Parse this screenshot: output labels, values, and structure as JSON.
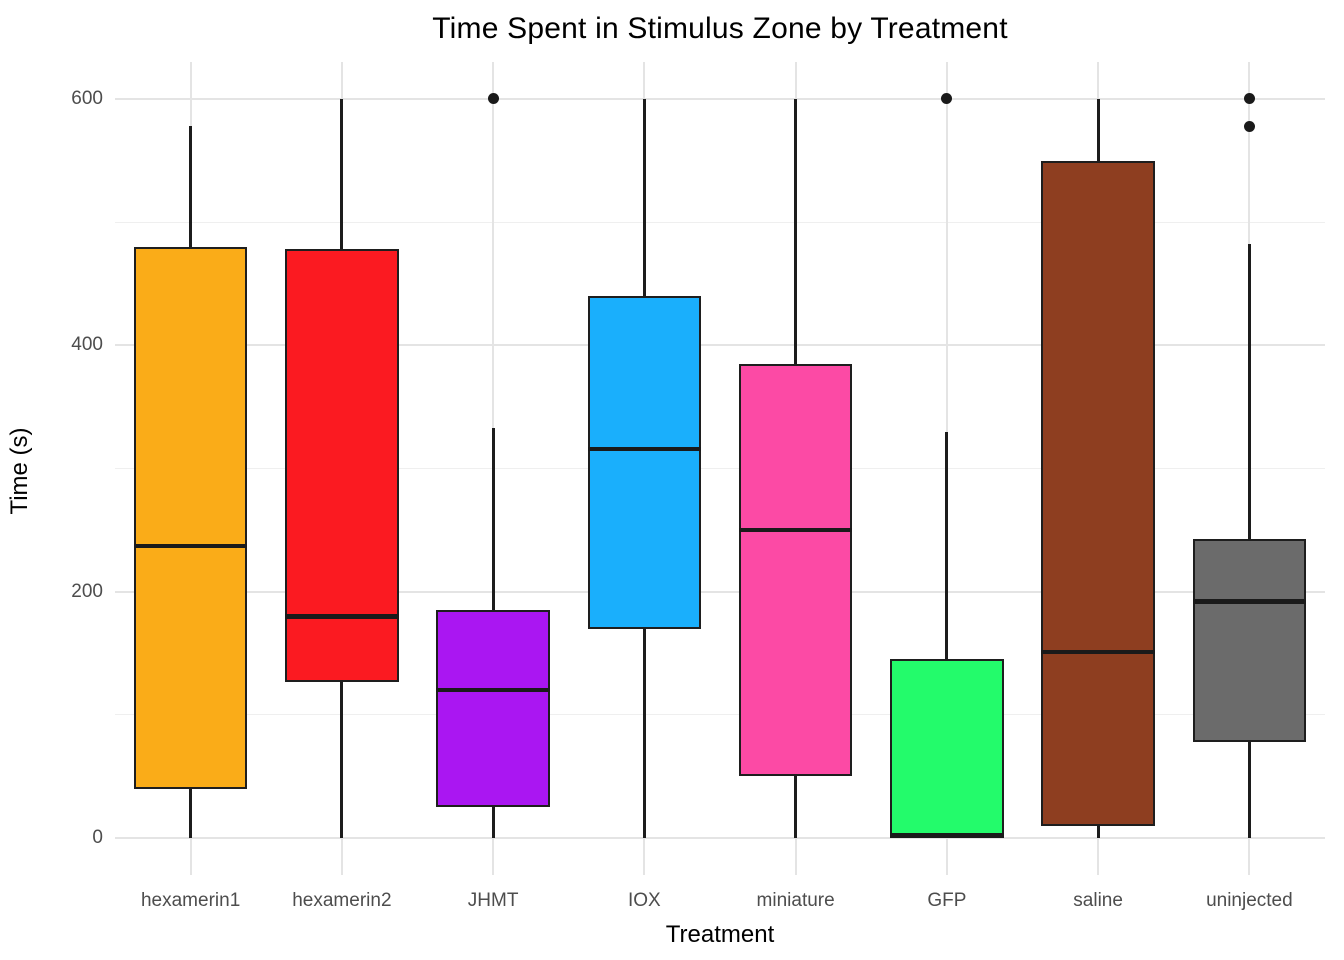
{
  "title": "Time Spent in Stimulus Zone by Treatment",
  "chart_data": {
    "type": "boxplot",
    "title": "Time Spent in Stimulus Zone by Treatment",
    "xlabel": "Treatment",
    "ylabel": "Time (s)",
    "y_ticks": [
      0,
      200,
      400,
      600
    ],
    "y_minor_ticks": [
      100,
      300,
      500
    ],
    "y_domain": [
      -30,
      630
    ],
    "grid": true,
    "legend": "none",
    "categories": [
      "hexamerin1",
      "hexamerin2",
      "JHMT",
      "IOX",
      "miniature",
      "GFP",
      "saline",
      "uninjected"
    ],
    "series": [
      {
        "name": "hexamerin1",
        "color": "#FAAC18",
        "whisker_low": 0,
        "q1": 40,
        "median": 237,
        "q3": 480,
        "whisker_high": 578,
        "outliers": []
      },
      {
        "name": "hexamerin2",
        "color": "#FB1A21",
        "whisker_low": 0,
        "q1": 127,
        "median": 180,
        "q3": 478,
        "whisker_high": 600,
        "outliers": []
      },
      {
        "name": "JHMT",
        "color": "#AA16F2",
        "whisker_low": 0,
        "q1": 25,
        "median": 120,
        "q3": 185,
        "whisker_high": 333,
        "outliers": [
          600
        ]
      },
      {
        "name": "IOX",
        "color": "#1AAFFC",
        "whisker_low": 0,
        "q1": 170,
        "median": 316,
        "q3": 440,
        "whisker_high": 600,
        "outliers": []
      },
      {
        "name": "miniature",
        "color": "#FC4AA5",
        "whisker_low": 0,
        "q1": 50,
        "median": 250,
        "q3": 385,
        "whisker_high": 600,
        "outliers": []
      },
      {
        "name": "GFP",
        "color": "#23FB6B",
        "whisker_low": 0,
        "q1": 0,
        "median": 2,
        "q3": 145,
        "whisker_high": 330,
        "outliers": [
          600
        ]
      },
      {
        "name": "saline",
        "color": "#8E3E20",
        "whisker_low": 0,
        "q1": 10,
        "median": 151,
        "q3": 550,
        "whisker_high": 600,
        "outliers": []
      },
      {
        "name": "uninjected",
        "color": "#6B6B6B",
        "whisker_low": 0,
        "q1": 78,
        "median": 192,
        "q3": 243,
        "whisker_high": 482,
        "outliers": [
          578,
          600
        ]
      }
    ]
  },
  "colors": {
    "background": "#FFFFFF",
    "grid_major": "#E4E4E4",
    "grid_minor": "#EFEFEF",
    "box_border": "#1E1E1E",
    "median_line": "#1A1A1A",
    "whisker_line": "#1C1C1C",
    "outlier_dot": "#1A1A1A",
    "axis_tick_text": "#4D4D4D",
    "title_text": "#000000"
  }
}
